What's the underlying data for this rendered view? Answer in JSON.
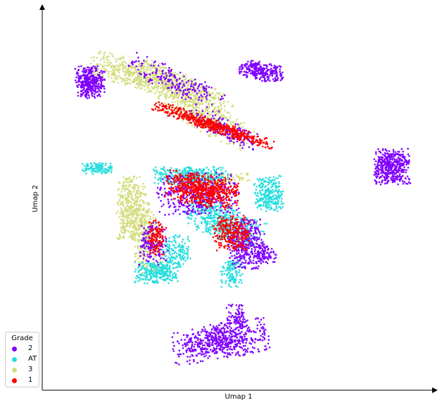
{
  "chart_data": {
    "type": "scatter",
    "xlabel": "Umap 1",
    "ylabel": "Umap 2",
    "xlim": [
      0,
      100
    ],
    "ylim": [
      0,
      100
    ],
    "grid": false,
    "legend": {
      "title": "Grade",
      "placement": "lower-left",
      "entries": [
        "2",
        "AT",
        "3",
        "1"
      ]
    },
    "series": [
      {
        "name": "2",
        "color": "#8000ff"
      },
      {
        "name": "AT",
        "color": "#2adddd"
      },
      {
        "name": "3",
        "color": "#d4dd80"
      },
      {
        "name": "1",
        "color": "#ff0000"
      }
    ],
    "clusters": [
      {
        "series": "3",
        "cx": 22,
        "cy": 85,
        "rx": 14,
        "ry": 4,
        "rot": -15,
        "n": 450
      },
      {
        "series": "3",
        "cx": 34,
        "cy": 81,
        "rx": 14,
        "ry": 4,
        "rot": -25,
        "n": 450
      },
      {
        "series": "3",
        "cx": 40,
        "cy": 73,
        "rx": 14,
        "ry": 4,
        "rot": -28,
        "n": 350
      },
      {
        "series": "2",
        "cx": 9,
        "cy": 83,
        "rx": 4,
        "ry": 4.5,
        "rot": 0,
        "n": 350
      },
      {
        "series": "2",
        "cx": 55,
        "cy": 86,
        "rx": 6,
        "ry": 2.6,
        "rot": -10,
        "n": 260
      },
      {
        "series": "2",
        "cx": 90,
        "cy": 59.5,
        "rx": 5,
        "ry": 5,
        "rot": 0,
        "n": 420
      },
      {
        "series": "2",
        "cx": 44,
        "cy": 11,
        "rx": 13,
        "ry": 5,
        "rot": 10,
        "n": 600
      },
      {
        "series": "2",
        "cx": 48,
        "cy": 18,
        "rx": 2.5,
        "ry": 3.5,
        "rot": 0,
        "n": 70
      },
      {
        "series": "2",
        "cx": 32,
        "cy": 83,
        "rx": 14,
        "ry": 3.5,
        "rot": -25,
        "n": 200
      },
      {
        "series": "2",
        "cx": 45,
        "cy": 70,
        "rx": 11,
        "ry": 3,
        "rot": -28,
        "n": 160
      },
      {
        "series": "1",
        "cx": 42,
        "cy": 71,
        "rx": 17,
        "ry": 1.7,
        "rot": -20,
        "n": 520
      },
      {
        "series": "AT",
        "cx": 11,
        "cy": 59,
        "rx": 4,
        "ry": 1.6,
        "rot": 0,
        "n": 130
      },
      {
        "series": "3",
        "cx": 20,
        "cy": 48,
        "rx": 4,
        "ry": 9,
        "rot": 0,
        "n": 400
      },
      {
        "series": "3",
        "cx": 24,
        "cy": 40,
        "rx": 4,
        "ry": 10,
        "rot": 5,
        "n": 300
      },
      {
        "series": "3",
        "cx": 42,
        "cy": 56,
        "rx": 10,
        "ry": 2,
        "rot": 0,
        "n": 160
      },
      {
        "series": "AT",
        "cx": 27,
        "cy": 30,
        "rx": 6,
        "ry": 3,
        "rot": 0,
        "n": 280
      },
      {
        "series": "AT",
        "cx": 32,
        "cy": 36,
        "rx": 4,
        "ry": 5,
        "rot": 0,
        "n": 150
      },
      {
        "series": "AT",
        "cx": 36,
        "cy": 57,
        "rx": 10,
        "ry": 2.5,
        "rot": 0,
        "n": 350
      },
      {
        "series": "AT",
        "cx": 45,
        "cy": 44,
        "rx": 11,
        "ry": 5,
        "rot": -25,
        "n": 500
      },
      {
        "series": "AT",
        "cx": 57,
        "cy": 52,
        "rx": 4,
        "ry": 5,
        "rot": 0,
        "n": 250
      },
      {
        "series": "AT",
        "cx": 47,
        "cy": 30,
        "rx": 3,
        "ry": 4,
        "rot": 0,
        "n": 130
      },
      {
        "series": "2",
        "cx": 38,
        "cy": 52,
        "rx": 11,
        "ry": 6,
        "rot": 0,
        "n": 400
      },
      {
        "series": "2",
        "cx": 51,
        "cy": 38,
        "rx": 5,
        "ry": 7,
        "rot": 0,
        "n": 350
      },
      {
        "series": "2",
        "cx": 26,
        "cy": 38,
        "rx": 4,
        "ry": 6,
        "rot": 0,
        "n": 160
      },
      {
        "series": "2",
        "cx": 56,
        "cy": 35,
        "rx": 3,
        "ry": 2.5,
        "rot": 0,
        "n": 90
      },
      {
        "series": "1",
        "cx": 39,
        "cy": 53,
        "rx": 10,
        "ry": 4.5,
        "rot": -10,
        "n": 600
      },
      {
        "series": "1",
        "cx": 47,
        "cy": 41,
        "rx": 5,
        "ry": 5,
        "rot": 0,
        "n": 260
      },
      {
        "series": "1",
        "cx": 27,
        "cy": 40,
        "rx": 2.5,
        "ry": 5,
        "rot": 0,
        "n": 110
      }
    ]
  }
}
